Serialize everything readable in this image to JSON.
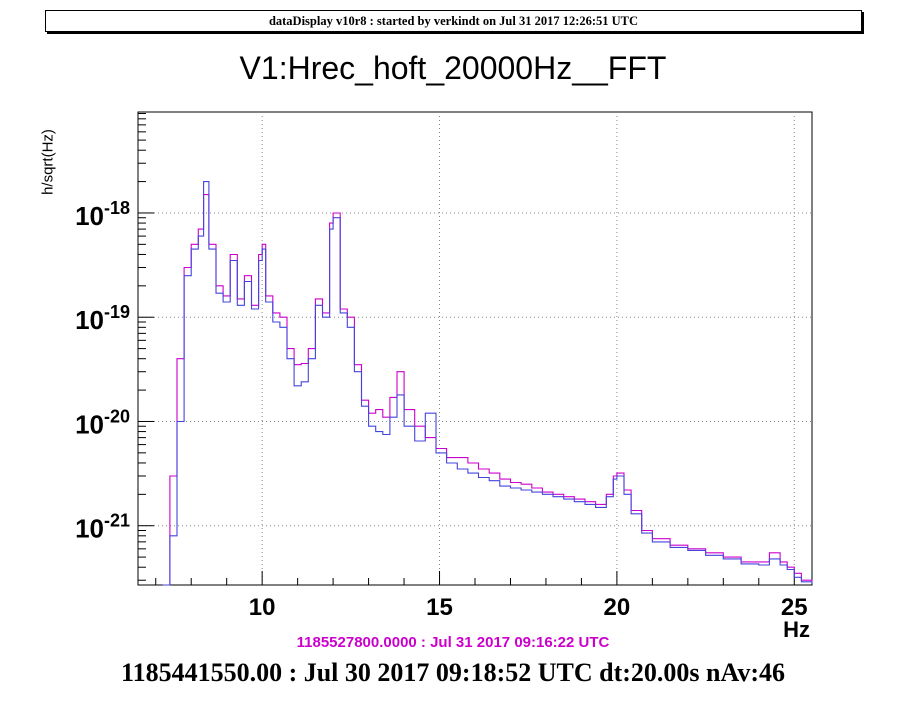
{
  "header": {
    "text": "dataDisplay v10r8 : started by verkindt on Jul 31 2017 12:26:51 UTC"
  },
  "footer": {
    "reference_line": "1185527800.0000 : Jul 31 2017 09:16:22 UTC",
    "main_line": "1185441550.00 : Jul 30 2017 09:18:52 UTC dt:20.00s nAv:46"
  },
  "chart_data": {
    "type": "line",
    "title": "V1:Hrec_hoft_20000Hz__FFT",
    "xlabel": "Hz",
    "ylabel": "h/sqrt(Hz)",
    "xlim": [
      6.5,
      25.5
    ],
    "ylim": [
      2.7e-22,
      9.3e-18
    ],
    "yscale": "log",
    "grid": true,
    "x_ticks": [
      10,
      15,
      20,
      25
    ],
    "x_tick_labels": [
      "10",
      "15",
      "20",
      "25"
    ],
    "y_ticks": [
      1e-21,
      1e-20,
      1e-19,
      1e-18
    ],
    "y_tick_labels": [
      {
        "base": "10",
        "exp": "-21"
      },
      {
        "base": "10",
        "exp": "-20"
      },
      {
        "base": "10",
        "exp": "-19"
      },
      {
        "base": "10",
        "exp": "-18"
      }
    ],
    "series": [
      {
        "color": "#cc00cc",
        "x": [
          7.2,
          7.4,
          7.6,
          7.8,
          8.0,
          8.2,
          8.35,
          8.5,
          8.7,
          8.9,
          9.1,
          9.3,
          9.5,
          9.7,
          9.9,
          10.0,
          10.1,
          10.3,
          10.5,
          10.7,
          10.9,
          11.1,
          11.3,
          11.5,
          11.7,
          11.9,
          12.0,
          12.2,
          12.4,
          12.6,
          12.8,
          13.0,
          13.2,
          13.4,
          13.6,
          13.8,
          14.0,
          14.3,
          14.6,
          14.9,
          15.2,
          15.5,
          15.8,
          16.1,
          16.4,
          16.7,
          17.0,
          17.3,
          17.6,
          17.9,
          18.2,
          18.5,
          18.8,
          19.1,
          19.4,
          19.7,
          19.9,
          20.0,
          20.2,
          20.4,
          20.7,
          21.0,
          21.5,
          22.0,
          22.5,
          23.0,
          23.5,
          24.0,
          24.3,
          24.6,
          24.8,
          25.0,
          25.2,
          25.5
        ],
        "y": [
          2.7e-22,
          3e-21,
          4e-20,
          3e-19,
          5e-19,
          7e-19,
          1.5e-18,
          5e-19,
          2e-19,
          1.6e-19,
          4e-19,
          1.5e-19,
          2.5e-19,
          1.3e-19,
          4e-19,
          5e-19,
          1.6e-19,
          1.1e-19,
          1e-19,
          5e-20,
          3.5e-20,
          3.6e-20,
          5e-20,
          1.5e-19,
          1.1e-19,
          8e-19,
          1e-18,
          1.2e-19,
          1e-19,
          3.5e-20,
          1.6e-20,
          1.2e-20,
          1.3e-20,
          1.1e-20,
          1.7e-20,
          3e-20,
          1.3e-20,
          9e-21,
          7e-21,
          5.5e-21,
          4.5e-21,
          4.5e-21,
          4e-21,
          3.5e-21,
          3.2e-21,
          2.8e-21,
          2.6e-21,
          2.5e-21,
          2.3e-21,
          2.1e-21,
          2e-21,
          1.9e-21,
          1.8e-21,
          1.7e-21,
          1.6e-21,
          2e-21,
          3e-21,
          3.2e-21,
          2.2e-21,
          1.4e-21,
          9e-22,
          7.5e-22,
          6.5e-22,
          6e-22,
          5.5e-22,
          5e-22,
          4.5e-22,
          4.5e-22,
          5.5e-22,
          4.5e-22,
          4e-22,
          3.5e-22,
          3e-22,
          2.9e-22
        ]
      },
      {
        "color": "#4444dd",
        "x": [
          7.2,
          7.4,
          7.6,
          7.8,
          8.0,
          8.2,
          8.35,
          8.5,
          8.7,
          8.9,
          9.1,
          9.3,
          9.5,
          9.7,
          9.9,
          10.0,
          10.1,
          10.3,
          10.5,
          10.7,
          10.9,
          11.1,
          11.3,
          11.5,
          11.7,
          11.9,
          12.0,
          12.2,
          12.4,
          12.6,
          12.8,
          13.0,
          13.2,
          13.4,
          13.6,
          13.8,
          14.0,
          14.3,
          14.6,
          14.9,
          15.2,
          15.5,
          15.8,
          16.1,
          16.4,
          16.7,
          17.0,
          17.3,
          17.6,
          17.9,
          18.2,
          18.5,
          18.8,
          19.1,
          19.4,
          19.7,
          19.9,
          20.0,
          20.2,
          20.4,
          20.7,
          21.0,
          21.5,
          22.0,
          22.5,
          23.0,
          23.5,
          24.0,
          24.3,
          24.6,
          24.8,
          25.0,
          25.2,
          25.5
        ],
        "y": [
          2.7e-22,
          8e-22,
          1e-20,
          2.5e-19,
          4.5e-19,
          6e-19,
          2e-18,
          4.5e-19,
          1.7e-19,
          1.4e-19,
          3.5e-19,
          1.3e-19,
          2.2e-19,
          1.2e-19,
          3.5e-19,
          4.5e-19,
          1.4e-19,
          9e-20,
          8e-20,
          4e-20,
          2.2e-20,
          2.4e-20,
          4e-20,
          1.3e-19,
          1e-19,
          7e-19,
          9e-19,
          1.1e-19,
          8e-20,
          3e-20,
          1.4e-20,
          9e-21,
          8e-21,
          7.5e-21,
          1.1e-20,
          1.8e-20,
          9e-21,
          6.5e-21,
          1.2e-20,
          5e-21,
          4e-21,
          3.5e-21,
          3.2e-21,
          2.9e-21,
          2.7e-21,
          2.4e-21,
          2.3e-21,
          2.2e-21,
          2.1e-21,
          2e-21,
          1.9e-21,
          1.8e-21,
          1.7e-21,
          1.6e-21,
          1.5e-21,
          1.9e-21,
          2.8e-21,
          3e-21,
          2e-21,
          1.3e-21,
          8.5e-22,
          7e-22,
          6.2e-22,
          5.8e-22,
          5.2e-22,
          4.8e-22,
          4.3e-22,
          4.2e-22,
          4.8e-22,
          4.2e-22,
          3.8e-22,
          3.2e-22,
          2.9e-22,
          2.8e-22
        ]
      }
    ]
  }
}
